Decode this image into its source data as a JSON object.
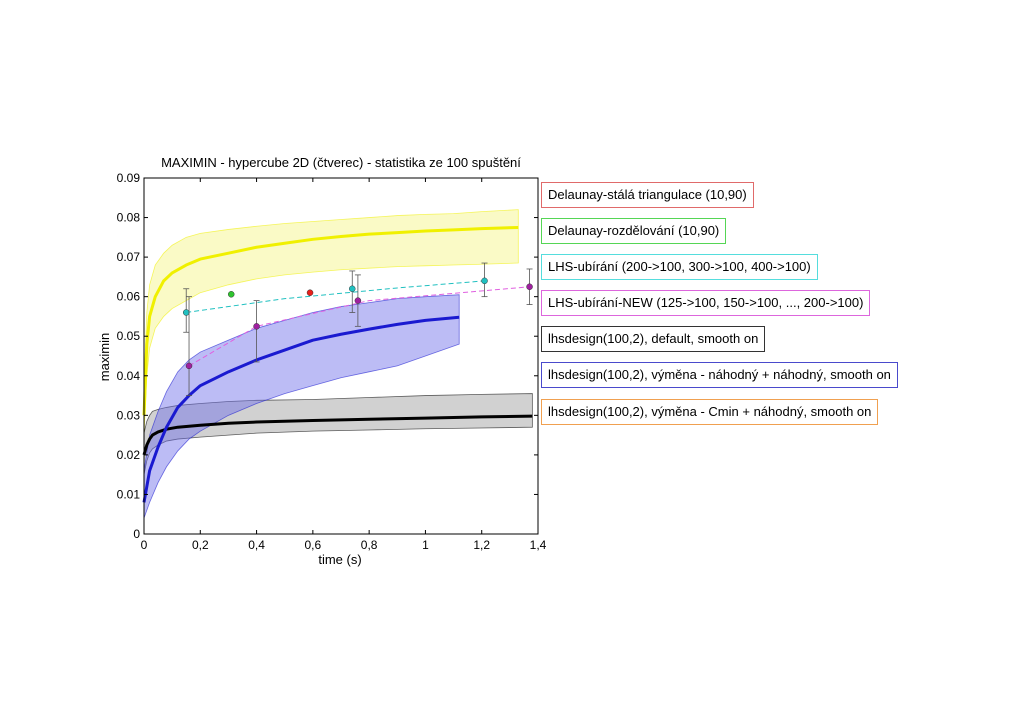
{
  "chart_data": {
    "type": "line",
    "title": "MAXIMIN - hypercube 2D (čtverec) - statistika ze 100 spuštění",
    "xlabel": "time (s)",
    "ylabel": "maximin",
    "xlim": [
      0,
      1.4
    ],
    "ylim": [
      0,
      0.09
    ],
    "xticks": [
      "0",
      "0,2",
      "0,4",
      "0,6",
      "0,8",
      "1",
      "1,2",
      "1,4"
    ],
    "xtick_values": [
      0,
      0.2,
      0.4,
      0.6,
      0.8,
      1.0,
      1.2,
      1.4
    ],
    "yticks": [
      "0",
      "0.01",
      "0.02",
      "0.03",
      "0.04",
      "0.05",
      "0.06",
      "0.07",
      "0.08",
      "0.09"
    ],
    "ytick_values": [
      0,
      0.01,
      0.02,
      0.03,
      0.04,
      0.05,
      0.06,
      0.07,
      0.08,
      0.09
    ],
    "grid": false,
    "legend_placement": "outside-right",
    "series": [
      {
        "name": "Delaunay-stálá triangulace (10,90)",
        "kind": "points",
        "color": "#e8201a",
        "legend_border": "#e06a6a",
        "x": [
          0.59
        ],
        "y": [
          0.061
        ]
      },
      {
        "name": "Delaunay-rozdělování (10,90)",
        "kind": "points",
        "color": "#2fc42f",
        "legend_border": "#55d655",
        "x": [
          0.31
        ],
        "y": [
          0.0606
        ]
      },
      {
        "name": "LHS-ubírání (200->100, 300->100, 400->100)",
        "kind": "errorbar",
        "color": "#20c0c0",
        "legend_border": "#55dddd",
        "x": [
          0.15,
          0.74,
          1.21
        ],
        "y": [
          0.056,
          0.062,
          0.064
        ],
        "ylow": [
          0.051,
          0.056,
          0.06
        ],
        "yhigh": [
          0.062,
          0.0665,
          0.0685
        ]
      },
      {
        "name": "LHS-ubírání-NEW (125->100, 150->100, ..., 200->100)",
        "kind": "errorbar",
        "color": "#a020a0",
        "legend_border": "#dd66dd",
        "x": [
          0.16,
          0.4,
          0.76,
          1.37
        ],
        "y": [
          0.0425,
          0.0525,
          0.059,
          0.0625
        ],
        "ylow": [
          0.035,
          0.0435,
          0.0525,
          0.058
        ],
        "yhigh": [
          0.06,
          0.059,
          0.0655,
          0.067
        ]
      },
      {
        "name": "lhsdesign(100,2), default, smooth on",
        "kind": "mean_band",
        "color": "#000000",
        "fill": "#999999",
        "legend_border": "#333333",
        "x": [
          0,
          0.01,
          0.02,
          0.03,
          0.05,
          0.08,
          0.12,
          0.2,
          0.3,
          0.4,
          0.6,
          0.8,
          1.0,
          1.2,
          1.38
        ],
        "y": [
          0.02,
          0.0225,
          0.024,
          0.025,
          0.0258,
          0.0265,
          0.027,
          0.0275,
          0.028,
          0.0283,
          0.0287,
          0.029,
          0.0293,
          0.0296,
          0.0298
        ],
        "lower": [
          0.015,
          0.0185,
          0.0205,
          0.0215,
          0.0225,
          0.0235,
          0.024,
          0.0245,
          0.025,
          0.0255,
          0.026,
          0.0263,
          0.0266,
          0.0268,
          0.027
        ],
        "upper": [
          0.0255,
          0.0285,
          0.03,
          0.031,
          0.0315,
          0.032,
          0.0325,
          0.033,
          0.0335,
          0.0338,
          0.034,
          0.0345,
          0.035,
          0.0353,
          0.0355
        ]
      },
      {
        "name": "lhsdesign(100,2), výměna - náhodný + náhodný, smooth on",
        "kind": "mean_band",
        "color": "#1a1ad0",
        "fill": "#6a6ae8",
        "legend_border": "#4a4acc",
        "x": [
          0,
          0.02,
          0.05,
          0.08,
          0.12,
          0.16,
          0.2,
          0.3,
          0.4,
          0.5,
          0.6,
          0.7,
          0.8,
          0.9,
          1.0,
          1.12
        ],
        "y": [
          0.008,
          0.016,
          0.022,
          0.027,
          0.032,
          0.035,
          0.0375,
          0.041,
          0.044,
          0.0465,
          0.049,
          0.0505,
          0.0518,
          0.053,
          0.054,
          0.0548
        ],
        "lower": [
          0.004,
          0.008,
          0.013,
          0.017,
          0.021,
          0.024,
          0.026,
          0.03,
          0.033,
          0.0355,
          0.0375,
          0.0395,
          0.041,
          0.0425,
          0.045,
          0.048
        ],
        "upper": [
          0.016,
          0.025,
          0.031,
          0.036,
          0.041,
          0.044,
          0.046,
          0.049,
          0.052,
          0.054,
          0.056,
          0.0575,
          0.0585,
          0.0595,
          0.06,
          0.0605
        ]
      },
      {
        "name": "lhsdesign(100,2), výměna - Cmin + náhodný, smooth on",
        "kind": "mean_band",
        "color": "#f0f000",
        "fill": "#f5f580",
        "legend_border": "#f0a050",
        "x": [
          0,
          0.01,
          0.02,
          0.04,
          0.07,
          0.1,
          0.15,
          0.2,
          0.3,
          0.4,
          0.5,
          0.6,
          0.7,
          0.8,
          0.9,
          1.0,
          1.1,
          1.2,
          1.33
        ],
        "y": [
          0.03,
          0.048,
          0.055,
          0.06,
          0.064,
          0.066,
          0.068,
          0.0695,
          0.071,
          0.0725,
          0.0735,
          0.0745,
          0.0752,
          0.0758,
          0.0762,
          0.0766,
          0.0769,
          0.0772,
          0.0775
        ],
        "lower": [
          0.025,
          0.04,
          0.047,
          0.052,
          0.055,
          0.057,
          0.059,
          0.061,
          0.063,
          0.0645,
          0.0655,
          0.0662,
          0.0668,
          0.0672,
          0.0676,
          0.0678,
          0.068,
          0.0682,
          0.0685
        ],
        "upper": [
          0.038,
          0.056,
          0.063,
          0.068,
          0.071,
          0.073,
          0.075,
          0.076,
          0.077,
          0.0778,
          0.0785,
          0.079,
          0.0795,
          0.08,
          0.0805,
          0.0808,
          0.081,
          0.0815,
          0.082
        ]
      }
    ],
    "fit_lines": [
      {
        "color": "#20c0c0",
        "dash": true,
        "x": [
          0.15,
          0.5,
          0.9,
          1.21
        ],
        "y": [
          0.056,
          0.0595,
          0.0622,
          0.064
        ]
      },
      {
        "color": "#e060e0",
        "dash": true,
        "x": [
          0.16,
          0.4,
          0.8,
          1.37
        ],
        "y": [
          0.0425,
          0.0525,
          0.059,
          0.0625
        ]
      }
    ]
  }
}
